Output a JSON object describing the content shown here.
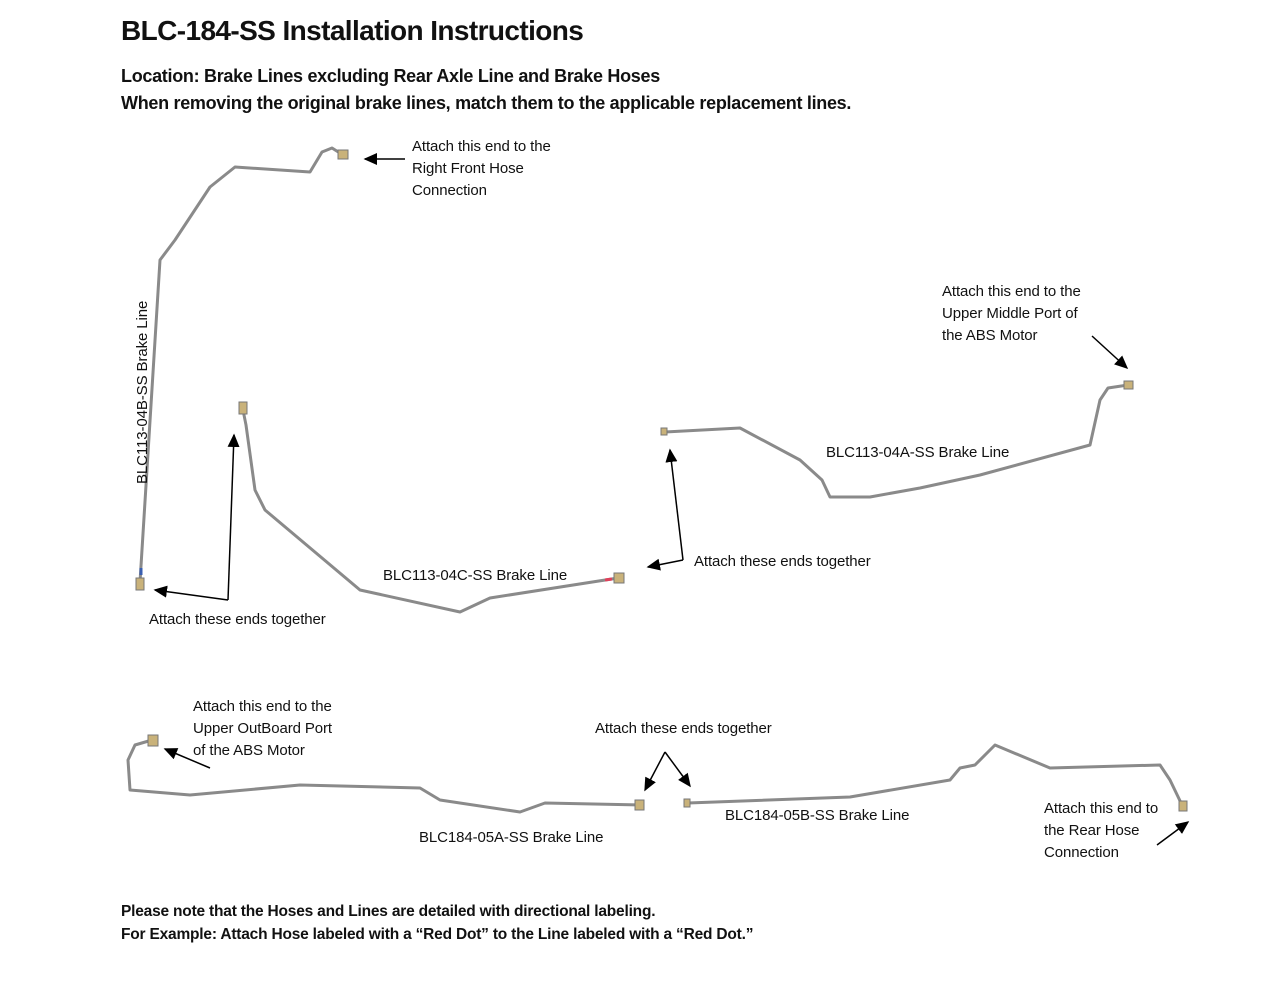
{
  "title": "BLC-184-SS Installation Instructions",
  "location": "Location: Brake Lines excluding Rear Axle Line and Brake Hoses",
  "instruction": "When removing the original brake lines, match them to the applicable replacement lines.",
  "labels": {
    "right_front": [
      "Attach this end to the",
      "Right Front Hose",
      "Connection"
    ],
    "upper_middle": [
      "Attach this end to the",
      "Upper Middle Port of",
      "the ABS Motor"
    ],
    "line_04b": "BLC113-04B-SS Brake Line",
    "line_04c": "BLC113-04C-SS Brake Line",
    "line_04a": "BLC113-04A-SS Brake Line",
    "together_1": "Attach these ends together",
    "together_2": "Attach these ends together",
    "upper_outboard": [
      "Attach this end to the",
      "Upper OutBoard Port",
      "of the ABS Motor"
    ],
    "together_3": "Attach these ends together",
    "line_05a": "BLC184-05A-SS Brake Line",
    "line_05b": "BLC184-05B-SS Brake Line",
    "rear_hose": [
      "Attach this end to",
      "the Rear Hose",
      "Connection"
    ]
  },
  "notes": [
    "Please note that the Hoses and Lines are detailed with directional labeling.",
    "For Example: Attach Hose labeled with a “Red Dot” to the Line labeled with a “Red Dot.”"
  ],
  "colors": {
    "line": "#8a8a8a",
    "fitting": "#c9b27a",
    "red_dot": "#e0405a",
    "blue_mark": "#3a5fb0"
  }
}
